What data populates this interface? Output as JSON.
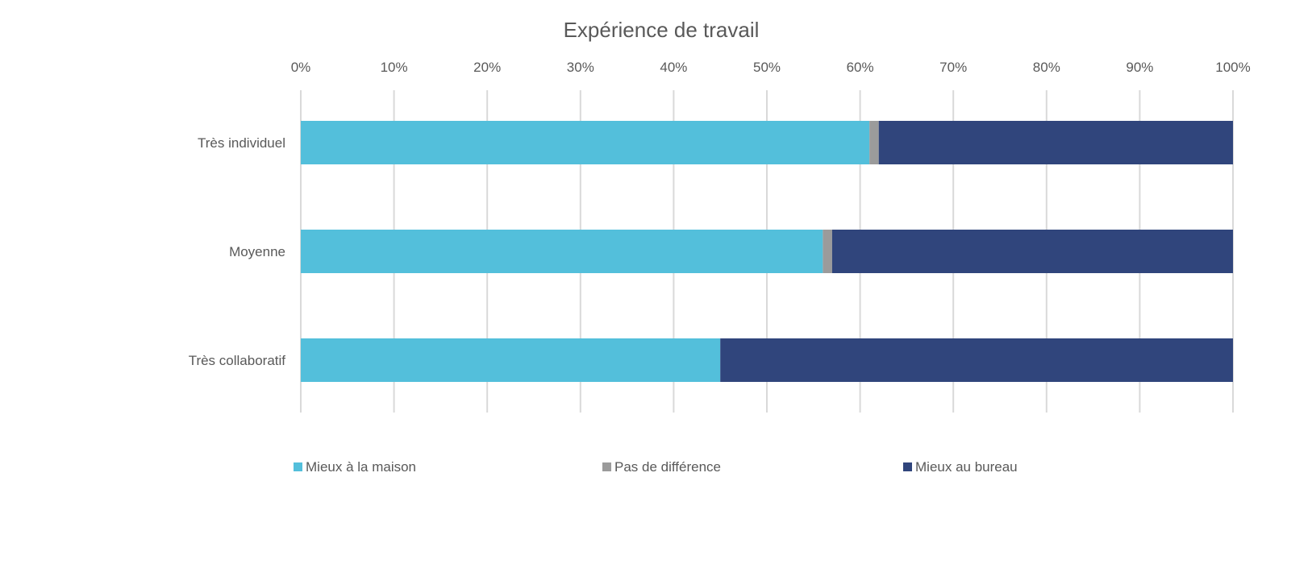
{
  "chart_data": {
    "type": "bar",
    "orientation": "horizontal",
    "stacked": true,
    "title": "Expérience de travail",
    "categories": [
      "Très individuel",
      "Moyenne",
      "Très collaboratif"
    ],
    "series": [
      {
        "name": "Mieux à la maison",
        "color": "#53BFDB",
        "values": [
          61,
          56,
          45
        ]
      },
      {
        "name": "Pas de différence",
        "color": "#9B9B9B",
        "values": [
          1,
          1,
          0
        ]
      },
      {
        "name": "Mieux au bureau",
        "color": "#30457C",
        "values": [
          38,
          43,
          55
        ]
      }
    ],
    "xlim": [
      0,
      100
    ],
    "x_ticks": [
      "0%",
      "10%",
      "20%",
      "30%",
      "40%",
      "50%",
      "60%",
      "70%",
      "80%",
      "90%",
      "100%"
    ],
    "x_axis_position": "top",
    "grid": true,
    "legend": "bottom"
  }
}
